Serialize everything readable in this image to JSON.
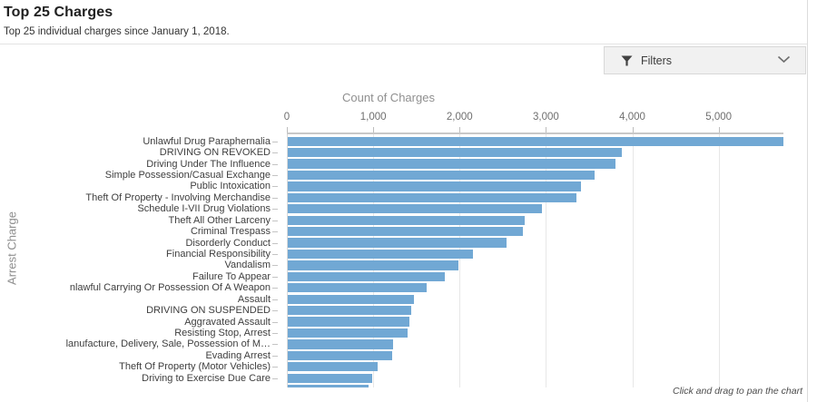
{
  "header": {
    "title": "Top 25 Charges",
    "subtitle": "Top 25 individual charges since January 1, 2018."
  },
  "filters": {
    "label": "Filters",
    "icons": {
      "left": "funnel-icon",
      "right": "chevron-down-icon"
    }
  },
  "chart_data": {
    "type": "bar",
    "orientation": "horizontal",
    "xlabel": "Count of Charges",
    "ylabel": "Arrest Charge",
    "xlim": [
      0,
      5750
    ],
    "x_ticks": [
      0,
      1000,
      2000,
      3000,
      4000,
      5000
    ],
    "x_tick_labels": [
      "0",
      "1,000",
      "2,000",
      "3,000",
      "4,000",
      "5,000"
    ],
    "grid": true,
    "bar_color": "#71a8d4",
    "categories": [
      "Unlawful Drug Paraphernalia",
      "DRIVING ON REVOKED",
      "Driving Under The Influence",
      "Simple Possession/Casual Exchange",
      "Public Intoxication",
      "Theft Of Property - Involving Merchandise",
      "Schedule I-VII Drug Violations",
      "Theft All Other Larceny",
      "Criminal Trespass",
      "Disorderly Conduct",
      "Financial Responsibility",
      "Vandalism",
      "Failure To Appear",
      "nlawful Carrying Or Possession Of A Weapon",
      "Assault",
      "DRIVING ON SUSPENDED",
      "Aggravated Assault",
      "Resisting Stop, Arrest",
      "lanufacture, Delivery, Sale, Possession of M…",
      "Evading Arrest",
      "Theft Of Property (Motor Vehicles)",
      "Driving to Exercise Due Care",
      ""
    ],
    "values": [
      5750,
      3870,
      3800,
      3550,
      3400,
      3340,
      2940,
      2740,
      2720,
      2530,
      2140,
      1980,
      1820,
      1610,
      1460,
      1430,
      1410,
      1390,
      1220,
      1210,
      1040,
      980,
      940
    ]
  },
  "footer": {
    "pan_hint": "Click and drag to pan the chart"
  }
}
